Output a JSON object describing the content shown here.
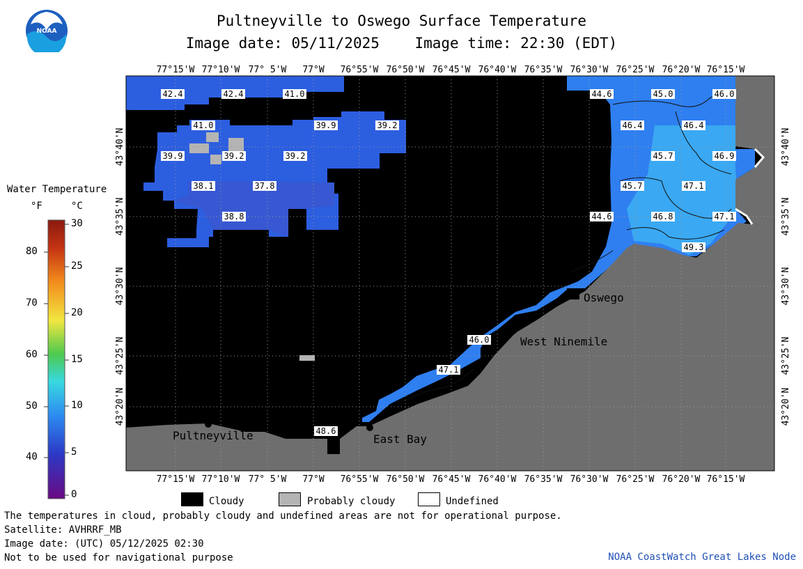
{
  "header": {
    "title": "Pultneyville to Oswego Surface Temperature",
    "date_label": "Image date: 05/11/2025",
    "time_label": "Image time: 22:30 (EDT)",
    "logo_text": "NOAA"
  },
  "axes": {
    "lon_labels": [
      "77°15'W",
      "77°10'W",
      "77° 5'W",
      "77°W",
      "76°55'W",
      "76°50'W",
      "76°45'W",
      "76°40'W",
      "76°35'W",
      "76°30'W",
      "76°25'W",
      "76°20'W",
      "76°15'W"
    ],
    "lat_labels": [
      "43°40'N",
      "43°35'N",
      "43°30'N",
      "43°25'N",
      "43°20'N"
    ]
  },
  "places": [
    "Oswego",
    "West Ninemile",
    "East Bay",
    "Pultneyville"
  ],
  "temperature_labels": [
    "42.4",
    "42.4",
    "41.0",
    "41.0",
    "39.9",
    "39.2",
    "39.9",
    "39.2",
    "39.2",
    "38.1",
    "37.8",
    "38.8",
    "44.6",
    "45.0",
    "46.0",
    "46.4",
    "46.4",
    "45.7",
    "46.9",
    "45.7",
    "47.1",
    "44.6",
    "46.8",
    "47.1",
    "49.3",
    "46.0",
    "47.1",
    "48.6"
  ],
  "legend": {
    "title": "Water Temperature",
    "unit_f": "°F",
    "unit_c": "°C",
    "f_ticks": [
      "80",
      "70",
      "60",
      "50",
      "40"
    ],
    "c_ticks": [
      "30",
      "25",
      "20",
      "15",
      "10",
      "5",
      "0"
    ],
    "colorbar_stops": [
      "#6a0a82",
      "#2c39c6",
      "#2d8cf0",
      "#38d8e0",
      "#4ec94e",
      "#f2e640",
      "#f28b1c",
      "#c43412",
      "#8a1a10"
    ]
  },
  "key": {
    "cloudy": "Cloudy",
    "probably_cloudy": "Probably cloudy",
    "undefined": "Undefined",
    "cloudy_color": "#000000",
    "probably_cloudy_color": "#b4b4b4",
    "undefined_color": "#ffffff"
  },
  "notes": {
    "disclaimer": "The temperatures in cloud, probably cloudy and undefined areas are not for operational purpose.",
    "satellite": "Satellite: AVHRRF_MB",
    "utc_date": "Image date: (UTC) 05/12/2025  02:30",
    "navigation": "Not to be used for navigational purpose",
    "credit": "NOAA CoastWatch Great Lakes Node"
  },
  "colors": {
    "land": "#6e6e6e",
    "cloud": "#000000",
    "water_cool": "#2c5ee0",
    "water_mid": "#2f7ff0",
    "water_warm": "#3aa8f2",
    "credit_blue": "#1f4fb3"
  }
}
